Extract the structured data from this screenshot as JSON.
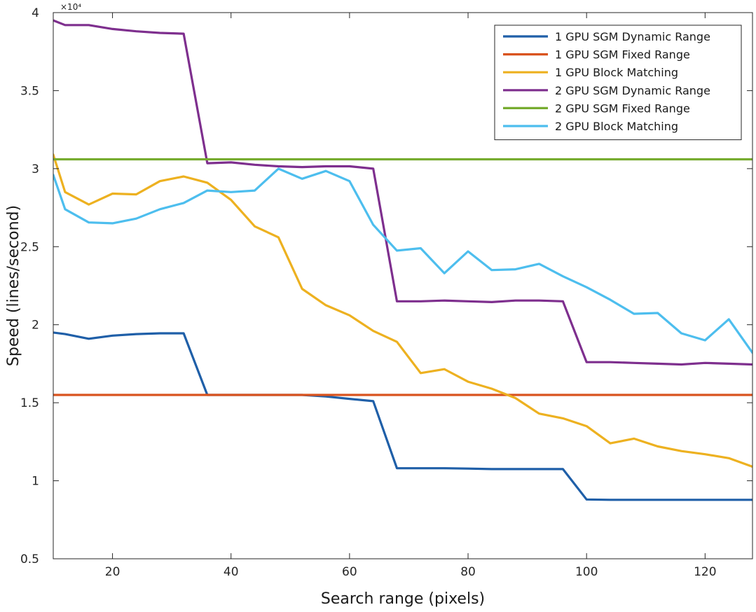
{
  "chart_data": {
    "type": "line",
    "xlabel": "Search range (pixels)",
    "ylabel": "Speed (lines/second)",
    "exponent_label": "×10⁴",
    "xlim": [
      10,
      128
    ],
    "ylim": [
      0.5,
      4
    ],
    "xticks": [
      20,
      40,
      60,
      80,
      100,
      120
    ],
    "yticks": [
      0.5,
      1,
      1.5,
      2,
      2.5,
      3,
      3.5,
      4
    ],
    "ytick_labels": [
      "0.5",
      "1",
      "1.5",
      "2",
      "2.5",
      "3",
      "3.5",
      "4"
    ],
    "legend_position": "top-right",
    "series": [
      {
        "name": "1 GPU SGM Dynamic Range",
        "color": "#1f5fa8",
        "x": [
          10,
          12,
          16,
          20,
          24,
          28,
          32,
          36,
          40,
          44,
          48,
          52,
          56,
          60,
          64,
          68,
          72,
          76,
          80,
          84,
          88,
          92,
          96,
          100,
          104,
          108,
          112,
          116,
          120,
          124,
          128
        ],
        "y": [
          1.95,
          1.94,
          1.91,
          1.93,
          1.94,
          1.945,
          1.945,
          1.55,
          1.55,
          1.55,
          1.55,
          1.55,
          1.54,
          1.525,
          1.51,
          1.08,
          1.08,
          1.08,
          1.078,
          1.075,
          1.075,
          1.075,
          1.075,
          0.88,
          0.878,
          0.878,
          0.878,
          0.878,
          0.878,
          0.878,
          0.878
        ]
      },
      {
        "name": "1 GPU SGM Fixed Range",
        "color": "#d9531e",
        "x": [
          10,
          128
        ],
        "y": [
          1.55,
          1.55
        ]
      },
      {
        "name": "1 GPU Block Matching",
        "color": "#edb120",
        "x": [
          10,
          12,
          16,
          20,
          24,
          28,
          32,
          36,
          40,
          44,
          48,
          52,
          56,
          60,
          64,
          68,
          72,
          76,
          80,
          84,
          88,
          92,
          96,
          100,
          104,
          108,
          112,
          116,
          120,
          124,
          128
        ],
        "y": [
          3.09,
          2.85,
          2.77,
          2.84,
          2.835,
          2.92,
          2.95,
          2.91,
          2.8,
          2.63,
          2.56,
          2.23,
          2.125,
          2.06,
          1.96,
          1.89,
          1.69,
          1.715,
          1.635,
          1.59,
          1.53,
          1.43,
          1.4,
          1.35,
          1.24,
          1.27,
          1.22,
          1.19,
          1.17,
          1.145,
          1.09
        ]
      },
      {
        "name": "2 GPU SGM Dynamic Range",
        "color": "#7e2f8e",
        "x": [
          10,
          12,
          16,
          20,
          24,
          28,
          32,
          36,
          40,
          44,
          48,
          52,
          56,
          60,
          64,
          68,
          72,
          76,
          80,
          84,
          88,
          92,
          96,
          100,
          104,
          108,
          112,
          116,
          120,
          124,
          128
        ],
        "y": [
          3.95,
          3.92,
          3.92,
          3.895,
          3.88,
          3.87,
          3.865,
          3.035,
          3.04,
          3.025,
          3.015,
          3.01,
          3.015,
          3.015,
          3.0,
          2.15,
          2.15,
          2.155,
          2.15,
          2.145,
          2.155,
          2.155,
          2.15,
          1.76,
          1.76,
          1.755,
          1.75,
          1.745,
          1.755,
          1.75,
          1.745
        ]
      },
      {
        "name": "2 GPU SGM Fixed Range",
        "color": "#77ac30",
        "x": [
          10,
          128
        ],
        "y": [
          3.06,
          3.06
        ]
      },
      {
        "name": "2 GPU Block Matching",
        "color": "#4dbeee",
        "x": [
          10,
          12,
          16,
          20,
          24,
          28,
          32,
          36,
          40,
          44,
          48,
          52,
          56,
          60,
          64,
          68,
          72,
          76,
          80,
          84,
          88,
          92,
          96,
          100,
          104,
          108,
          112,
          116,
          120,
          124,
          128
        ],
        "y": [
          2.96,
          2.74,
          2.655,
          2.65,
          2.68,
          2.74,
          2.78,
          2.86,
          2.85,
          2.86,
          3.0,
          2.935,
          2.985,
          2.92,
          2.64,
          2.475,
          2.49,
          2.33,
          2.47,
          2.35,
          2.355,
          2.39,
          2.31,
          2.24,
          2.16,
          2.07,
          2.075,
          1.945,
          1.9,
          2.035,
          1.82
        ]
      }
    ]
  }
}
